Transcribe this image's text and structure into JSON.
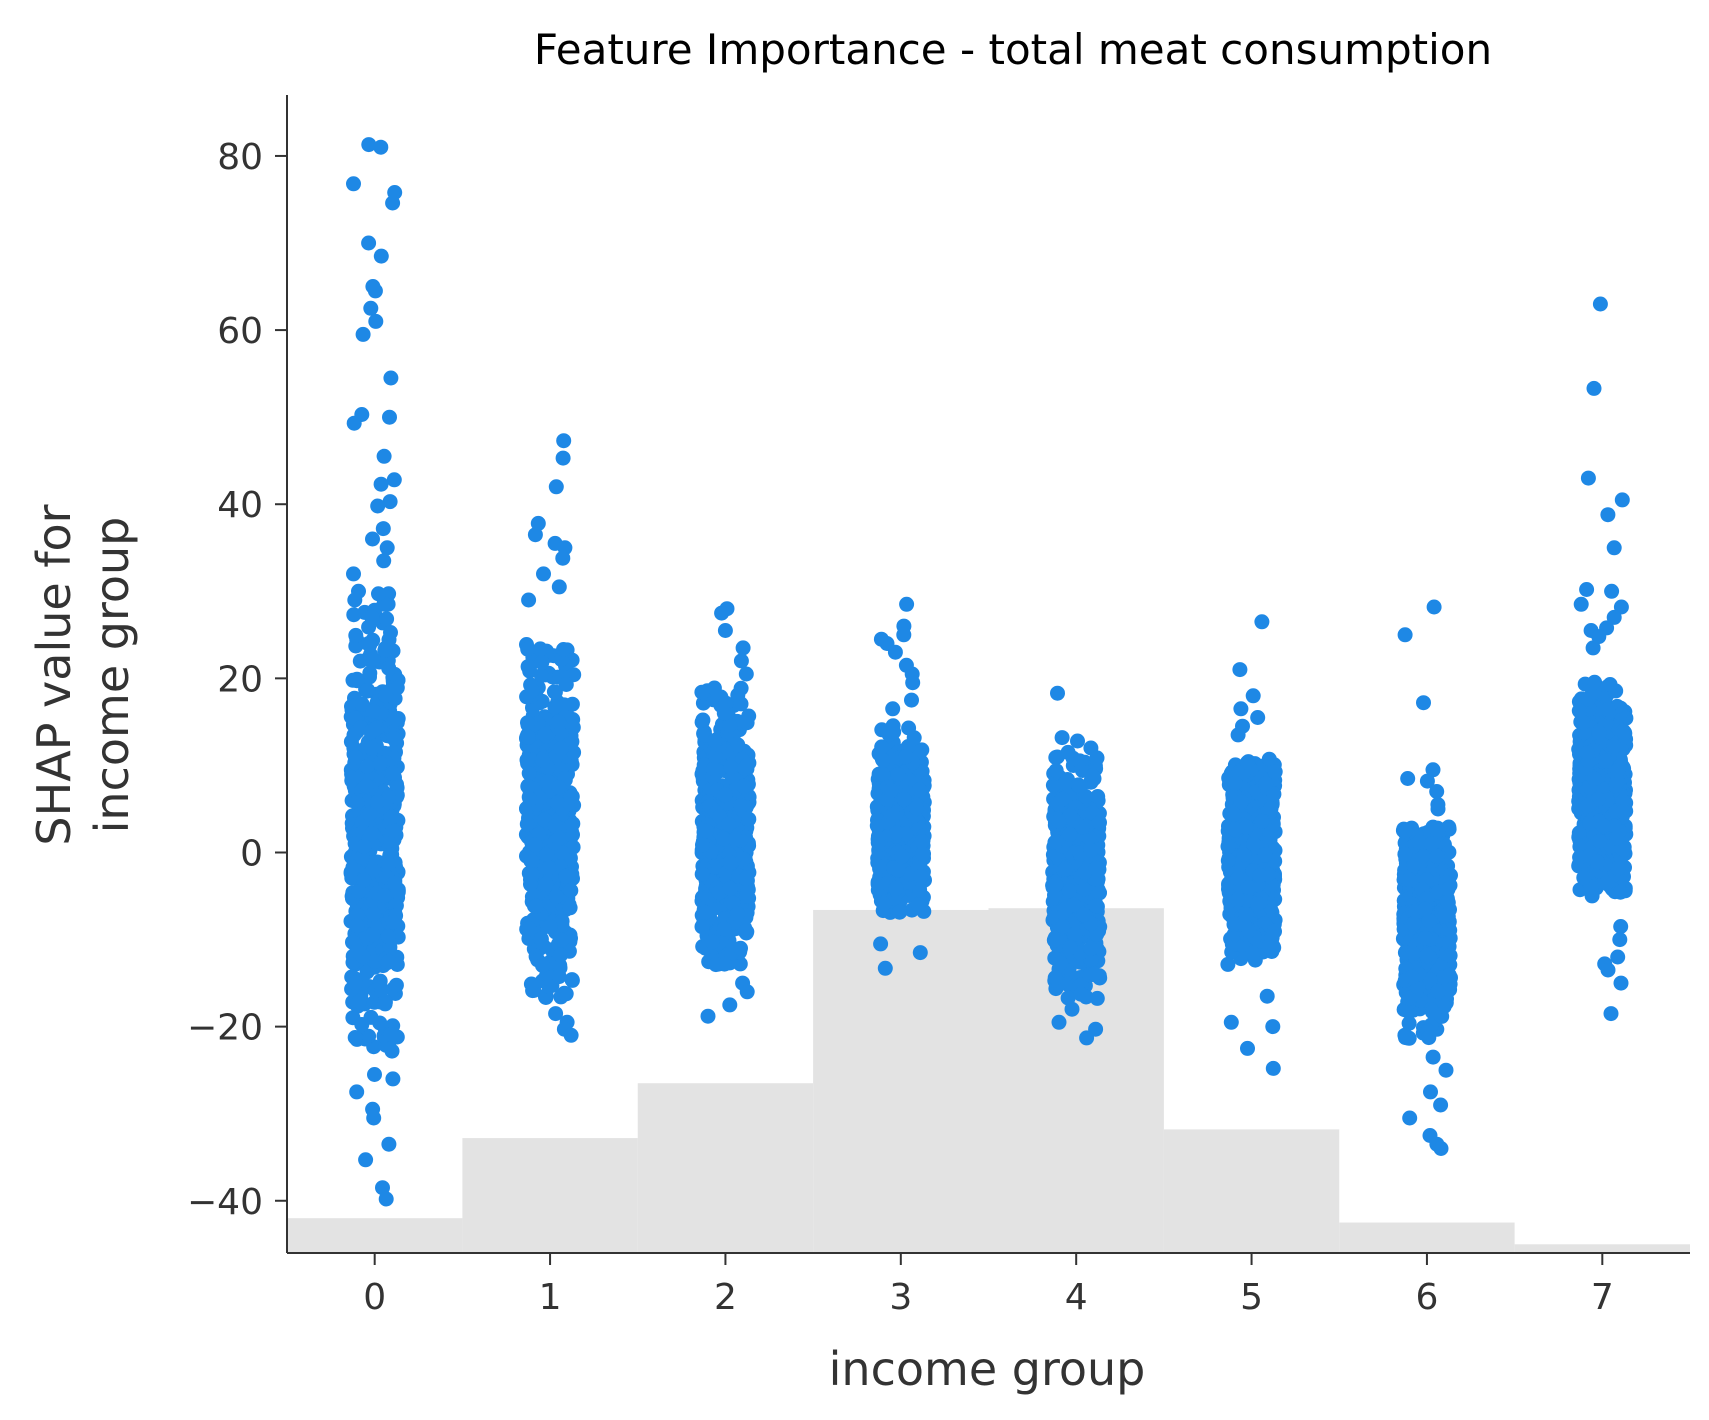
{
  "chart_data": {
    "type": "scatter",
    "title": "Feature Importance - total meat consumption",
    "xlabel": "income group",
    "ylabel_lines": [
      "SHAP value for",
      "income group"
    ],
    "xlim": [
      -0.5,
      7.5
    ],
    "ylim": [
      -46,
      87
    ],
    "x_ticks": [
      0,
      1,
      2,
      3,
      4,
      5,
      6,
      7
    ],
    "x_tick_labels": [
      "0",
      "1",
      "2",
      "3",
      "4",
      "5",
      "6",
      "7"
    ],
    "y_ticks": [
      -40,
      -20,
      0,
      20,
      40,
      60,
      80
    ],
    "y_tick_labels": [
      "−40",
      "−20",
      "0",
      "20",
      "40",
      "60",
      "80"
    ],
    "grid": false,
    "point_color": "#1e88e5",
    "histogram_color": "#e0e0e0",
    "histogram": {
      "description_visible": false,
      "bins": [
        {
          "x0": -0.5,
          "x1": 0.5,
          "top": -42.0
        },
        {
          "x0": 0.5,
          "x1": 1.5,
          "top": -32.8
        },
        {
          "x0": 1.5,
          "x1": 2.5,
          "top": -26.5
        },
        {
          "x0": 2.5,
          "x1": 3.5,
          "top": -6.6
        },
        {
          "x0": 3.5,
          "x1": 4.5,
          "top": -6.4
        },
        {
          "x0": 4.5,
          "x1": 5.5,
          "top": -31.8
        },
        {
          "x0": 5.5,
          "x1": 6.5,
          "top": -42.5
        },
        {
          "x0": 6.5,
          "x1": 7.5,
          "top": -45.0
        }
      ]
    },
    "groups": [
      {
        "x": 0,
        "dense_min": -23,
        "dense_max": 30,
        "center": 2,
        "outliers": [
          81.3,
          81.0,
          76.8,
          75.8,
          74.6,
          70.0,
          68.5,
          65.0,
          64.5,
          62.5,
          61.0,
          59.5,
          54.5,
          50.3,
          50.0,
          49.3,
          45.5,
          42.8,
          42.3,
          40.3,
          39.8,
          37.2,
          36.0,
          35.0,
          33.5,
          32.0,
          -25.5,
          -26.0,
          -27.5,
          -29.5,
          -30.5,
          -33.5,
          -35.3,
          -38.5,
          -39.8
        ]
      },
      {
        "x": 1,
        "dense_min": -17,
        "dense_max": 24,
        "center": 4,
        "outliers": [
          47.3,
          45.3,
          42.0,
          37.8,
          36.5,
          35.5,
          35.0,
          33.8,
          32.0,
          30.5,
          29.0,
          -18.5,
          -19.5,
          -20.3,
          -21.0
        ]
      },
      {
        "x": 2,
        "dense_min": -13,
        "dense_max": 19,
        "center": 2,
        "outliers": [
          28.0,
          27.5,
          25.5,
          23.5,
          22.0,
          20.5,
          -15.0,
          -16.0,
          -17.5,
          -18.8
        ]
      },
      {
        "x": 3,
        "dense_min": -7,
        "dense_max": 15,
        "center": 3,
        "outliers": [
          28.5,
          26.0,
          25.0,
          24.5,
          24.0,
          23.0,
          21.5,
          20.5,
          19.5,
          17.5,
          16.5,
          -10.5,
          -11.5,
          -13.3
        ]
      },
      {
        "x": 4,
        "dense_min": -17,
        "dense_max": 11,
        "center": -3,
        "outliers": [
          18.3,
          13.2,
          12.8,
          12.0,
          11.5,
          -18.0,
          -19.5,
          -20.3,
          -21.3
        ]
      },
      {
        "x": 5,
        "dense_min": -13,
        "dense_max": 11,
        "center": 0,
        "outliers": [
          26.5,
          21.0,
          18.0,
          16.5,
          15.5,
          14.5,
          13.5,
          -16.5,
          -19.5,
          -20.0,
          -22.5,
          -24.8
        ]
      },
      {
        "x": 6,
        "dense_min": -22,
        "dense_max": 3,
        "center": -8,
        "outliers": [
          28.2,
          25.0,
          17.2,
          9.5,
          8.5,
          8.2,
          7.0,
          5.5,
          5.0,
          -23.5,
          -25.0,
          -27.5,
          -29.0,
          -30.5,
          -32.5,
          -33.5,
          -34.0
        ]
      },
      {
        "x": 7,
        "dense_min": -5,
        "dense_max": 20,
        "center": 7,
        "outliers": [
          63.0,
          53.3,
          43.0,
          40.5,
          38.8,
          35.0,
          30.2,
          30.0,
          28.5,
          28.2,
          27.0,
          25.8,
          25.5,
          24.8,
          23.5,
          -8.5,
          -10.0,
          -12.0,
          -12.8,
          -13.5,
          -15.0,
          -18.5
        ]
      }
    ]
  }
}
